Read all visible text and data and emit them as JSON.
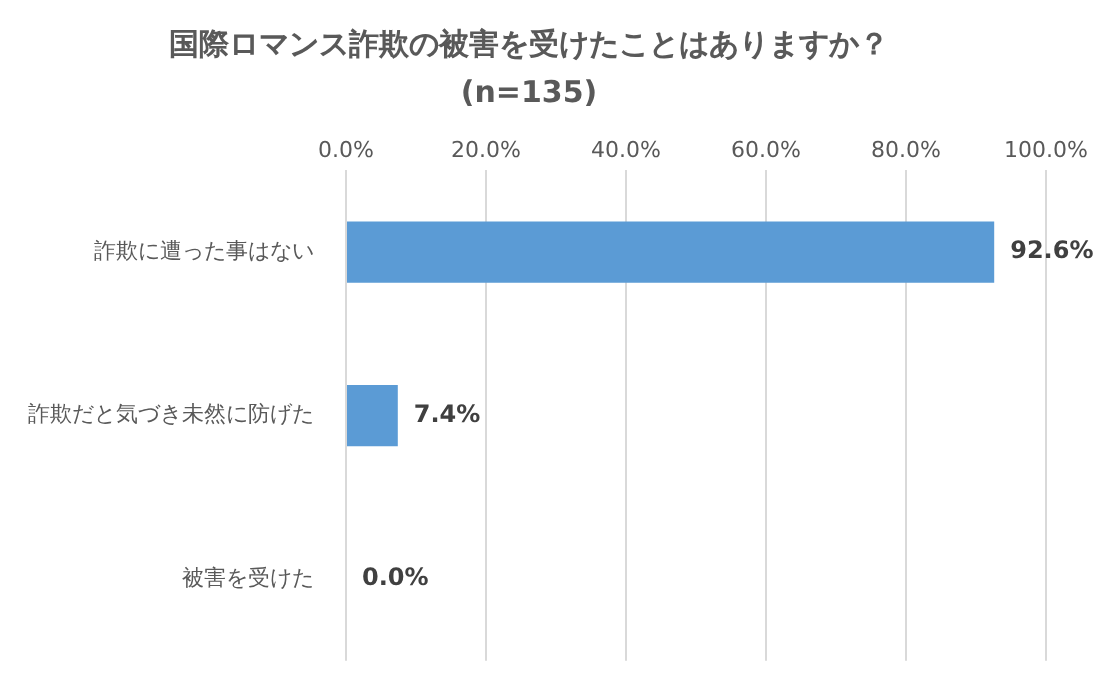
{
  "chart_data": {
    "type": "bar",
    "orientation": "horizontal",
    "title": "国際ロマンス詐欺の被害を受けたことはありますか？",
    "subtitle": "(n=135)",
    "categories": [
      "詐欺に遭った事はない",
      "詐欺だと気づき未然に防げた",
      "被害を受けた"
    ],
    "values": [
      92.6,
      7.4,
      0.0
    ],
    "color": "#5b9bd5",
    "value_labels": [
      "92.6%",
      "7.4%",
      "0.0%"
    ],
    "xlim": [
      0,
      100
    ],
    "xticks": [
      {
        "value": 0,
        "label": "0.0%"
      },
      {
        "value": 20,
        "label": "20.0%"
      },
      {
        "value": 40,
        "label": "40.0%"
      },
      {
        "value": 60,
        "label": "60.0%"
      },
      {
        "value": 80,
        "label": "80.0%"
      },
      {
        "value": 100,
        "label": "100.0%"
      }
    ],
    "grid": "x",
    "legend": false
  }
}
